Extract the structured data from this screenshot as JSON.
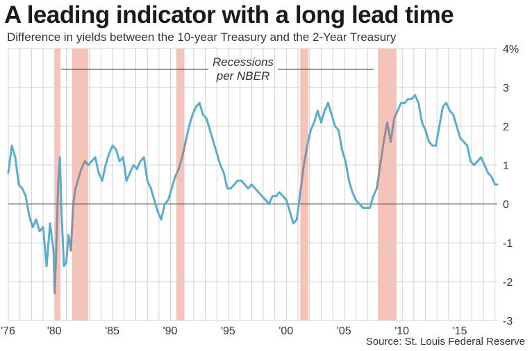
{
  "header": {
    "title": "A leading indicator with a long lead time",
    "subtitle": "Difference in yields between the 10-year Treasury and the 2-Year Treasury"
  },
  "footer": {
    "source": "Source: St. Louis Federal Reserve"
  },
  "colors": {
    "line": "#5aaecd",
    "recession_line": "#8b8f9e",
    "recession_band": "#f7c2b8",
    "grid": "#d0d0d0",
    "zero": "#555555"
  },
  "chart_data": {
    "type": "line",
    "title": "A leading indicator with a long lead time",
    "ylabel": "Difference in yields between the 10-year Treasury and the 2-Year Treasury",
    "xlim": [
      1976,
      2018.2
    ],
    "ylim": [
      -3,
      4
    ],
    "y_ticks": [
      {
        "value": 4,
        "label": "4%"
      },
      {
        "value": 3,
        "label": "3"
      },
      {
        "value": 2,
        "label": "2"
      },
      {
        "value": 1,
        "label": "1"
      },
      {
        "value": 0,
        "label": "0"
      },
      {
        "value": -1,
        "label": "-1"
      },
      {
        "value": -2,
        "label": "-2"
      },
      {
        "value": -3,
        "label": "-3"
      }
    ],
    "x_ticks": [
      {
        "value": 1976,
        "label": "'76"
      },
      {
        "value": 1980,
        "label": "'80"
      },
      {
        "value": 1985,
        "label": "'85"
      },
      {
        "value": 1990,
        "label": "'90"
      },
      {
        "value": 1995,
        "label": "'95"
      },
      {
        "value": 2000,
        "label": "'00"
      },
      {
        "value": 2005,
        "label": "'05"
      },
      {
        "value": 2010,
        "label": "'10"
      },
      {
        "value": 2015,
        "label": "'15"
      }
    ],
    "recessions": [
      {
        "start": 1980.0,
        "end": 1980.5
      },
      {
        "start": 1981.5,
        "end": 1982.9
      },
      {
        "start": 1990.5,
        "end": 1991.2
      },
      {
        "start": 2001.2,
        "end": 2001.9
      },
      {
        "start": 2007.9,
        "end": 2009.5
      }
    ],
    "annotation": {
      "line1": "Recessions",
      "line2": "per NBER"
    },
    "series": [
      {
        "name": "10-year minus 2-year Treasury yield spread",
        "x": [
          1976.0,
          1976.3,
          1976.6,
          1976.9,
          1977.2,
          1977.5,
          1977.8,
          1978.1,
          1978.4,
          1978.7,
          1979.0,
          1979.3,
          1979.6,
          1979.9,
          1980.0,
          1980.1,
          1980.3,
          1980.45,
          1980.6,
          1980.8,
          1981.0,
          1981.2,
          1981.4,
          1981.6,
          1981.8,
          1982.0,
          1982.3,
          1982.6,
          1982.9,
          1983.2,
          1983.5,
          1983.8,
          1984.1,
          1984.4,
          1984.7,
          1985.0,
          1985.3,
          1985.6,
          1985.9,
          1986.2,
          1986.5,
          1986.8,
          1987.1,
          1987.4,
          1987.7,
          1988.0,
          1988.3,
          1988.6,
          1988.9,
          1989.2,
          1989.5,
          1989.8,
          1990.1,
          1990.4,
          1990.7,
          1991.0,
          1991.3,
          1991.6,
          1991.9,
          1992.2,
          1992.5,
          1992.8,
          1993.1,
          1993.4,
          1993.7,
          1994.0,
          1994.3,
          1994.6,
          1994.9,
          1995.2,
          1995.5,
          1995.8,
          1996.1,
          1996.4,
          1996.7,
          1997.0,
          1997.3,
          1997.6,
          1997.9,
          1998.2,
          1998.5,
          1998.8,
          1999.1,
          1999.4,
          1999.7,
          2000.0,
          2000.3,
          2000.6,
          2000.9,
          2001.2,
          2001.5,
          2001.8,
          2002.1,
          2002.4,
          2002.7,
          2003.0,
          2003.3,
          2003.6,
          2003.9,
          2004.2,
          2004.5,
          2004.8,
          2005.1,
          2005.4,
          2005.7,
          2006.0,
          2006.3,
          2006.6,
          2006.9,
          2007.2,
          2007.5,
          2007.8,
          2008.1,
          2008.4,
          2008.7,
          2009.0,
          2009.3,
          2009.6,
          2009.9,
          2010.2,
          2010.5,
          2010.8,
          2011.1,
          2011.4,
          2011.7,
          2012.0,
          2012.3,
          2012.6,
          2012.9,
          2013.2,
          2013.5,
          2013.8,
          2014.1,
          2014.4,
          2014.7,
          2015.0,
          2015.3,
          2015.6,
          2015.9,
          2016.2,
          2016.5,
          2016.8,
          2017.1,
          2017.4,
          2017.7,
          2018.0,
          2018.2
        ],
        "values": [
          0.8,
          1.5,
          1.2,
          0.5,
          0.4,
          0.2,
          -0.3,
          -0.6,
          -0.4,
          -0.7,
          -0.6,
          -1.6,
          -0.5,
          -1.2,
          -2.3,
          -1.5,
          0.5,
          1.2,
          -0.3,
          -1.6,
          -1.5,
          -0.8,
          -1.2,
          0.0,
          0.4,
          0.6,
          0.9,
          1.1,
          1.0,
          1.1,
          1.2,
          0.8,
          0.6,
          1.0,
          1.3,
          1.5,
          1.4,
          1.1,
          1.2,
          0.6,
          0.8,
          1.0,
          0.9,
          1.1,
          1.2,
          0.6,
          0.4,
          0.1,
          -0.2,
          -0.4,
          0.0,
          0.1,
          0.4,
          0.7,
          0.9,
          1.2,
          1.6,
          2.0,
          2.3,
          2.5,
          2.6,
          2.3,
          2.2,
          1.9,
          1.6,
          1.3,
          1.0,
          0.8,
          0.4,
          0.4,
          0.5,
          0.6,
          0.6,
          0.5,
          0.4,
          0.5,
          0.4,
          0.3,
          0.2,
          0.1,
          0.0,
          0.2,
          0.2,
          0.3,
          0.2,
          0.1,
          -0.2,
          -0.5,
          -0.4,
          0.3,
          1.0,
          1.5,
          1.9,
          2.1,
          2.4,
          2.1,
          2.4,
          2.6,
          2.3,
          2.0,
          1.9,
          1.4,
          1.1,
          0.6,
          0.3,
          0.1,
          0.0,
          -0.1,
          -0.1,
          -0.1,
          0.2,
          0.4,
          1.0,
          1.6,
          2.1,
          1.6,
          2.2,
          2.4,
          2.6,
          2.6,
          2.7,
          2.7,
          2.8,
          2.6,
          2.1,
          1.9,
          1.6,
          1.5,
          1.5,
          2.0,
          2.5,
          2.6,
          2.4,
          2.3,
          2.0,
          1.7,
          1.6,
          1.5,
          1.1,
          1.0,
          1.1,
          1.2,
          1.0,
          0.8,
          0.7,
          0.5,
          0.5
        ]
      }
    ]
  }
}
